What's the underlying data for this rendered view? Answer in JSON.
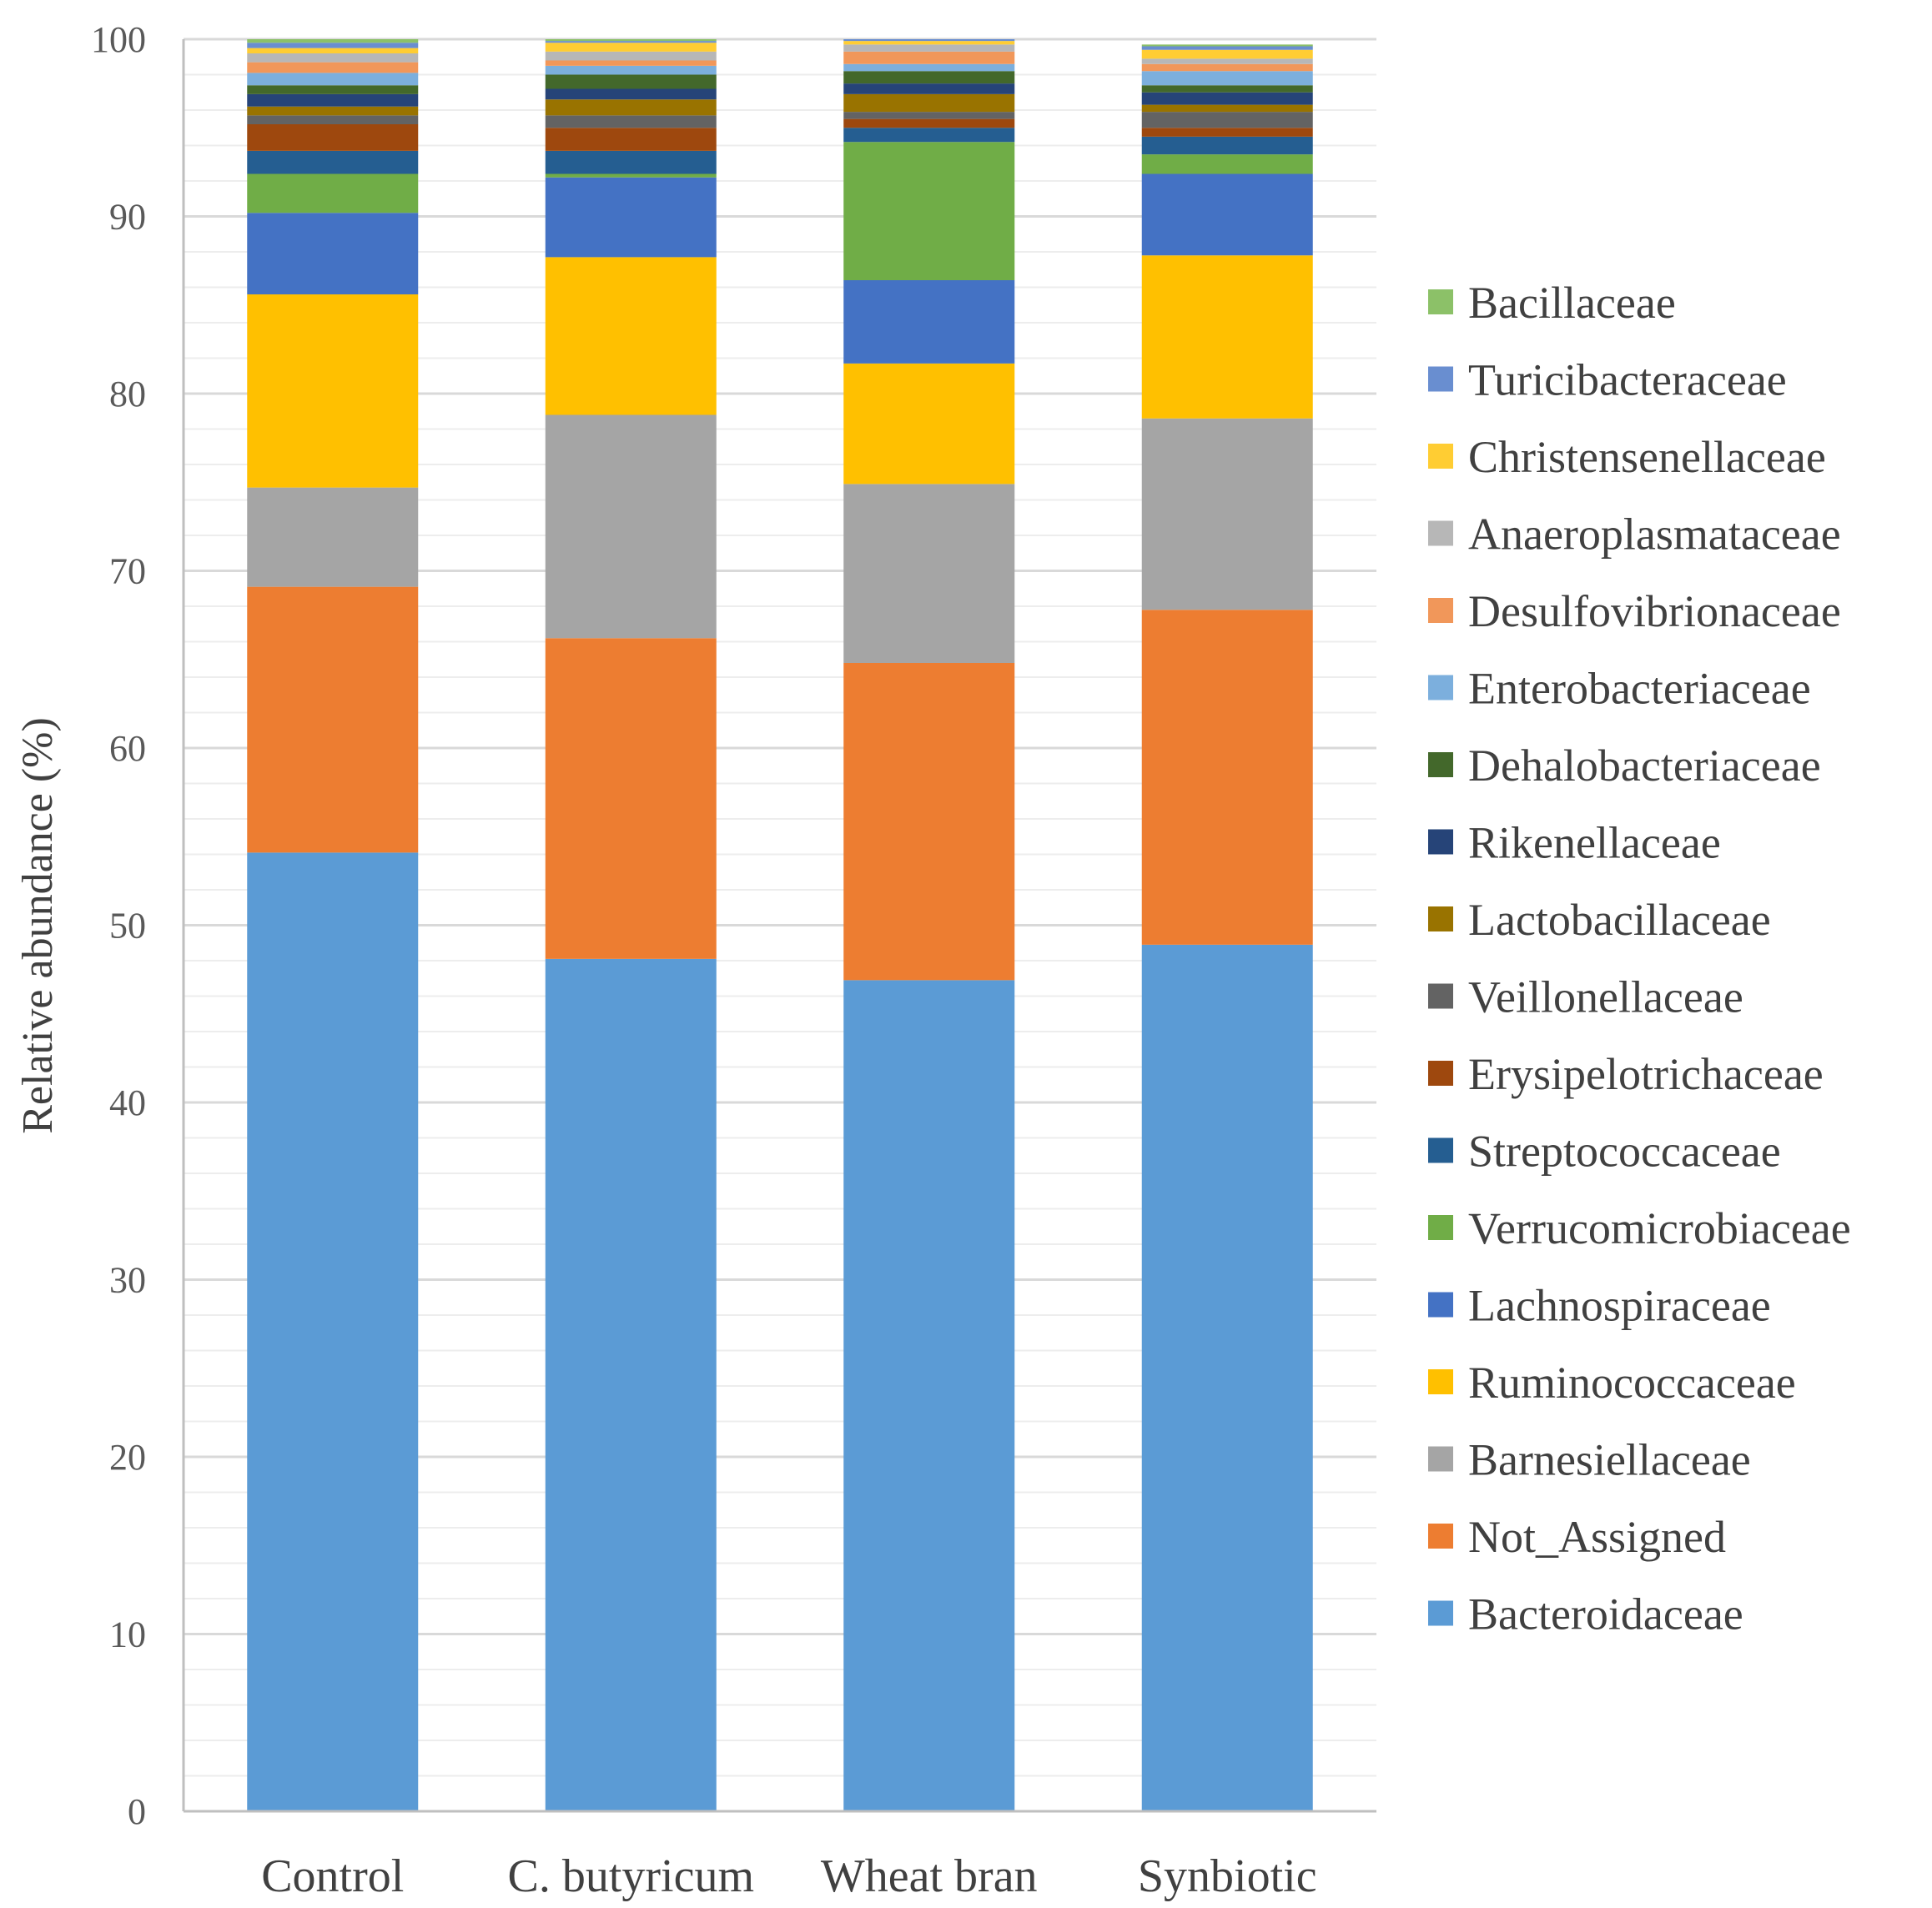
{
  "chart_data": {
    "type": "bar",
    "stacked": true,
    "title": "",
    "xlabel": "",
    "ylabel": "Relative abundance (%)",
    "ylim": [
      0,
      100
    ],
    "y_ticks": [
      0,
      10,
      20,
      30,
      40,
      50,
      60,
      70,
      80,
      90,
      100
    ],
    "grid": true,
    "legend_position": "right",
    "categories": [
      "Control",
      "C. butyricum",
      "Wheat bran",
      "Synbiotic"
    ],
    "series": [
      {
        "name": "Bacteroidaceae",
        "color": "#5b9bd5",
        "values": [
          54.1,
          48.1,
          46.9,
          48.9
        ]
      },
      {
        "name": "Not_Assigned",
        "color": "#ed7d31",
        "values": [
          15.0,
          18.1,
          17.9,
          18.9
        ]
      },
      {
        "name": "Barnesiellaceae",
        "color": "#a5a5a5",
        "values": [
          5.6,
          12.6,
          10.1,
          10.8
        ]
      },
      {
        "name": "Ruminococcaceae",
        "color": "#ffc000",
        "values": [
          10.9,
          8.9,
          6.8,
          9.2
        ]
      },
      {
        "name": "Lachnospiraceae",
        "color": "#4472c4",
        "values": [
          4.6,
          4.5,
          4.7,
          4.6
        ]
      },
      {
        "name": "Verrucomicrobiaceae",
        "color": "#70ad47",
        "values": [
          2.2,
          0.2,
          7.8,
          1.1
        ]
      },
      {
        "name": "Streptococcaceae",
        "color": "#255e91",
        "values": [
          1.3,
          1.3,
          0.8,
          1.0
        ]
      },
      {
        "name": "Erysipelotrichaceae",
        "color": "#9e480e",
        "values": [
          1.5,
          1.3,
          0.5,
          0.5
        ]
      },
      {
        "name": "Veillonellaceae",
        "color": "#636363",
        "values": [
          0.5,
          0.7,
          0.4,
          0.9
        ]
      },
      {
        "name": "Lactobacillaceae",
        "color": "#997300",
        "values": [
          0.5,
          0.9,
          1.0,
          0.4
        ]
      },
      {
        "name": "Rikenellaceae",
        "color": "#264478",
        "values": [
          0.7,
          0.6,
          0.6,
          0.7
        ]
      },
      {
        "name": "Dehalobacteriaceae",
        "color": "#43682b",
        "values": [
          0.5,
          0.8,
          0.7,
          0.4
        ]
      },
      {
        "name": "Enterobacteriaceae",
        "color": "#7cafdd",
        "values": [
          0.7,
          0.5,
          0.4,
          0.8
        ]
      },
      {
        "name": "Desulfovibrionaceae",
        "color": "#f1975a",
        "values": [
          0.6,
          0.3,
          0.7,
          0.4
        ]
      },
      {
        "name": "Anaeroplasmataceae",
        "color": "#b7b7b7",
        "values": [
          0.5,
          0.5,
          0.4,
          0.3
        ]
      },
      {
        "name": "Christensenellaceae",
        "color": "#ffcd33",
        "values": [
          0.3,
          0.5,
          0.2,
          0.5
        ]
      },
      {
        "name": "Turicibacteraceae",
        "color": "#698ed0",
        "values": [
          0.3,
          0.1,
          0.1,
          0.2
        ]
      },
      {
        "name": "Bacillaceae",
        "color": "#8cc168",
        "values": [
          0.2,
          0.1,
          0.1,
          0.1
        ]
      }
    ]
  }
}
